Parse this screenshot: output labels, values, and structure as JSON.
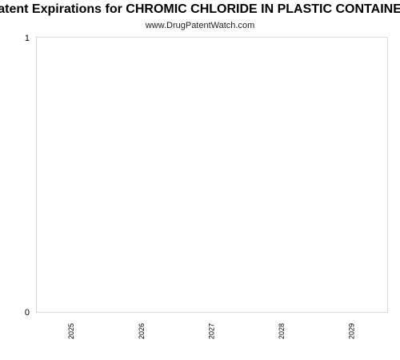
{
  "header": {
    "title": "Patent Expirations for CHROMIC CHLORIDE IN PLASTIC CONTAINER",
    "subtitle": "www.DrugPatentWatch.com"
  },
  "colors": {
    "plot_border": "#d9d9d9",
    "text": "#000000"
  },
  "chart_data": {
    "type": "bar",
    "title": "Patent Expirations for CHROMIC CHLORIDE IN PLASTIC CONTAINER",
    "subtitle": "www.DrugPatentWatch.com",
    "categories": [
      "2025",
      "2026",
      "2027",
      "2028",
      "2029"
    ],
    "values": [
      0,
      0,
      0,
      0,
      0
    ],
    "xlabel": "",
    "ylabel": "",
    "ylim": [
      0,
      1
    ],
    "yticks": [
      0,
      1
    ],
    "grid": false,
    "legend": "none"
  }
}
